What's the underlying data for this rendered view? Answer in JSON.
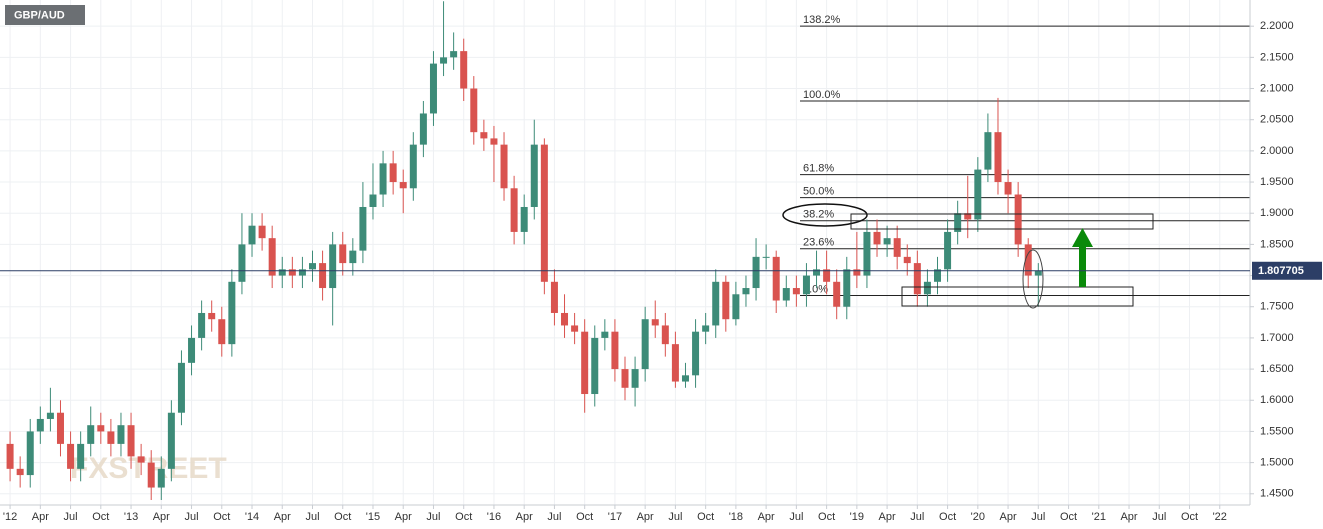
{
  "chart_data": {
    "type": "candlestick",
    "title": "GBP/AUD",
    "watermark": "FXSTREET",
    "series": [
      {
        "name": "GBP/AUD",
        "up_color": "#3d8b78",
        "down_color": "#d9534f",
        "x": [
          "2012-01",
          "2012-02",
          "2012-03",
          "2012-04",
          "2012-05",
          "2012-06",
          "2012-07",
          "2012-08",
          "2012-09",
          "2012-10",
          "2012-11",
          "2012-12",
          "2013-01",
          "2013-02",
          "2013-03",
          "2013-04",
          "2013-05",
          "2013-06",
          "2013-07",
          "2013-08",
          "2013-09",
          "2013-10",
          "2013-11",
          "2013-12",
          "2014-01",
          "2014-02",
          "2014-03",
          "2014-04",
          "2014-05",
          "2014-06",
          "2014-07",
          "2014-08",
          "2014-09",
          "2014-10",
          "2014-11",
          "2014-12",
          "2015-01",
          "2015-02",
          "2015-03",
          "2015-04",
          "2015-05",
          "2015-06",
          "2015-07",
          "2015-08",
          "2015-09",
          "2015-10",
          "2015-11",
          "2015-12",
          "2016-01",
          "2016-02",
          "2016-03",
          "2016-04",
          "2016-05",
          "2016-06",
          "2016-07",
          "2016-08",
          "2016-09",
          "2016-10",
          "2016-11",
          "2016-12",
          "2017-01",
          "2017-02",
          "2017-03",
          "2017-04",
          "2017-05",
          "2017-06",
          "2017-07",
          "2017-08",
          "2017-09",
          "2017-10",
          "2017-11",
          "2017-12",
          "2018-01",
          "2018-02",
          "2018-03",
          "2018-04",
          "2018-05",
          "2018-06",
          "2018-07",
          "2018-08",
          "2018-09",
          "2018-10",
          "2018-11",
          "2018-12",
          "2019-01",
          "2019-02",
          "2019-03",
          "2019-04",
          "2019-05",
          "2019-06",
          "2019-07",
          "2019-08",
          "2019-09",
          "2019-10",
          "2019-11",
          "2019-12",
          "2020-01",
          "2020-02",
          "2020-03",
          "2020-04",
          "2020-05",
          "2020-06",
          "2020-07"
        ],
        "open": [
          1.53,
          1.49,
          1.48,
          1.55,
          1.57,
          1.58,
          1.53,
          1.49,
          1.53,
          1.56,
          1.55,
          1.53,
          1.56,
          1.51,
          1.5,
          1.46,
          1.49,
          1.58,
          1.66,
          1.7,
          1.74,
          1.73,
          1.69,
          1.79,
          1.85,
          1.88,
          1.86,
          1.8,
          1.81,
          1.8,
          1.81,
          1.82,
          1.78,
          1.85,
          1.82,
          1.84,
          1.91,
          1.93,
          1.98,
          1.95,
          1.94,
          2.01,
          2.06,
          2.14,
          2.15,
          2.16,
          2.1,
          2.03,
          2.02,
          2.01,
          1.94,
          1.87,
          1.91,
          2.01,
          1.79,
          1.74,
          1.72,
          1.71,
          1.61,
          1.7,
          1.71,
          1.65,
          1.62,
          1.65,
          1.73,
          1.72,
          1.69,
          1.63,
          1.64,
          1.71,
          1.72,
          1.79,
          1.73,
          1.77,
          1.78,
          1.83,
          1.83,
          1.76,
          1.78,
          1.77,
          1.8,
          1.81,
          1.79,
          1.75,
          1.81,
          1.8,
          1.87,
          1.85,
          1.86,
          1.83,
          1.82,
          1.77,
          1.79,
          1.81,
          1.87,
          1.9,
          1.89,
          1.97,
          2.03,
          1.95,
          1.93,
          1.85,
          1.8
        ],
        "high": [
          1.55,
          1.51,
          1.57,
          1.59,
          1.62,
          1.6,
          1.55,
          1.55,
          1.59,
          1.58,
          1.57,
          1.58,
          1.58,
          1.53,
          1.52,
          1.51,
          1.6,
          1.68,
          1.72,
          1.76,
          1.76,
          1.75,
          1.81,
          1.9,
          1.9,
          1.9,
          1.88,
          1.83,
          1.83,
          1.83,
          1.84,
          1.84,
          1.87,
          1.87,
          1.86,
          1.95,
          1.98,
          2.0,
          2.0,
          1.97,
          2.03,
          2.08,
          2.16,
          2.24,
          2.19,
          2.18,
          2.12,
          2.05,
          2.04,
          2.03,
          1.96,
          1.93,
          2.05,
          2.02,
          1.81,
          1.77,
          1.74,
          1.73,
          1.72,
          1.73,
          1.73,
          1.67,
          1.67,
          1.75,
          1.76,
          1.74,
          1.71,
          1.66,
          1.73,
          1.74,
          1.81,
          1.8,
          1.79,
          1.8,
          1.86,
          1.85,
          1.84,
          1.8,
          1.8,
          1.82,
          1.84,
          1.84,
          1.81,
          1.83,
          1.87,
          1.89,
          1.89,
          1.88,
          1.88,
          1.85,
          1.84,
          1.81,
          1.83,
          1.89,
          1.92,
          1.96,
          1.99,
          2.06,
          2.085,
          1.97,
          1.95,
          1.86,
          1.82
        ],
        "low": [
          1.47,
          1.46,
          1.46,
          1.53,
          1.55,
          1.51,
          1.47,
          1.47,
          1.51,
          1.53,
          1.51,
          1.51,
          1.49,
          1.48,
          1.44,
          1.44,
          1.47,
          1.56,
          1.64,
          1.68,
          1.71,
          1.67,
          1.67,
          1.77,
          1.83,
          1.84,
          1.78,
          1.78,
          1.78,
          1.78,
          1.79,
          1.76,
          1.72,
          1.8,
          1.8,
          1.82,
          1.89,
          1.91,
          1.93,
          1.9,
          1.92,
          1.99,
          2.04,
          2.12,
          2.13,
          2.08,
          2.01,
          2.0,
          1.95,
          1.92,
          1.85,
          1.85,
          1.89,
          1.77,
          1.72,
          1.7,
          1.69,
          1.58,
          1.59,
          1.68,
          1.63,
          1.6,
          1.59,
          1.63,
          1.7,
          1.67,
          1.62,
          1.62,
          1.62,
          1.69,
          1.7,
          1.71,
          1.72,
          1.75,
          1.76,
          1.81,
          1.74,
          1.75,
          1.75,
          1.75,
          1.78,
          1.77,
          1.73,
          1.73,
          1.78,
          1.78,
          1.83,
          1.83,
          1.81,
          1.8,
          1.75,
          1.75,
          1.77,
          1.79,
          1.85,
          1.86,
          1.87,
          1.95,
          1.93,
          1.9,
          1.83,
          1.78,
          1.75
        ],
        "close": [
          1.49,
          1.48,
          1.55,
          1.57,
          1.58,
          1.53,
          1.49,
          1.53,
          1.56,
          1.55,
          1.53,
          1.56,
          1.51,
          1.5,
          1.46,
          1.49,
          1.58,
          1.66,
          1.7,
          1.74,
          1.73,
          1.69,
          1.79,
          1.85,
          1.88,
          1.86,
          1.8,
          1.81,
          1.8,
          1.81,
          1.82,
          1.78,
          1.85,
          1.82,
          1.84,
          1.91,
          1.93,
          1.98,
          1.95,
          1.94,
          2.01,
          2.06,
          2.14,
          2.15,
          2.16,
          2.1,
          2.03,
          2.02,
          2.01,
          1.94,
          1.87,
          1.91,
          2.01,
          1.79,
          1.74,
          1.72,
          1.71,
          1.61,
          1.7,
          1.71,
          1.65,
          1.62,
          1.65,
          1.73,
          1.72,
          1.69,
          1.63,
          1.64,
          1.71,
          1.72,
          1.79,
          1.73,
          1.77,
          1.78,
          1.83,
          1.83,
          1.76,
          1.78,
          1.77,
          1.8,
          1.81,
          1.79,
          1.75,
          1.81,
          1.8,
          1.87,
          1.85,
          1.86,
          1.83,
          1.82,
          1.77,
          1.79,
          1.81,
          1.87,
          1.9,
          1.89,
          1.97,
          2.03,
          1.95,
          1.93,
          1.85,
          1.8,
          1.8077
        ]
      }
    ],
    "last_price": 1.807705,
    "fib_levels": [
      {
        "label": "138.2%",
        "value": 2.2
      },
      {
        "label": "100.0%",
        "value": 2.08
      },
      {
        "label": "61.8%",
        "value": 1.962
      },
      {
        "label": "50.0%",
        "value": 1.925
      },
      {
        "label": "38.2%",
        "value": 1.888
      },
      {
        "label": "23.6%",
        "value": 1.843
      },
      {
        "label": "0.0%",
        "value": 1.768
      }
    ],
    "xlim": [
      "2011-12",
      "2022-04"
    ],
    "ylim": [
      1.432,
      2.242
    ],
    "yticks": [
      {
        "value": 1.45,
        "label": "1.4500"
      },
      {
        "value": 1.5,
        "label": "1.5000"
      },
      {
        "value": 1.55,
        "label": "1.5500"
      },
      {
        "value": 1.6,
        "label": "1.6000"
      },
      {
        "value": 1.65,
        "label": "1.6500"
      },
      {
        "value": 1.7,
        "label": "1.7000"
      },
      {
        "value": 1.75,
        "label": "1.7500"
      },
      {
        "value": 1.8,
        "label": "1.8000"
      },
      {
        "value": 1.85,
        "label": "1.8500"
      },
      {
        "value": 1.9,
        "label": "1.9000"
      },
      {
        "value": 1.95,
        "label": "1.9500"
      },
      {
        "value": 2.0,
        "label": "2.0000"
      },
      {
        "value": 2.05,
        "label": "2.0500"
      },
      {
        "value": 2.1,
        "label": "2.1000"
      },
      {
        "value": 2.15,
        "label": "2.1500"
      },
      {
        "value": 2.2,
        "label": "2.2000"
      }
    ],
    "xticks": [
      {
        "value": "2012-01",
        "label": "'12"
      },
      {
        "value": "2012-04",
        "label": "Apr"
      },
      {
        "value": "2012-07",
        "label": "Jul"
      },
      {
        "value": "2012-10",
        "label": "Oct"
      },
      {
        "value": "2013-01",
        "label": "'13"
      },
      {
        "value": "2013-04",
        "label": "Apr"
      },
      {
        "value": "2013-07",
        "label": "Jul"
      },
      {
        "value": "2013-10",
        "label": "Oct"
      },
      {
        "value": "2014-01",
        "label": "'14"
      },
      {
        "value": "2014-04",
        "label": "Apr"
      },
      {
        "value": "2014-07",
        "label": "Jul"
      },
      {
        "value": "2014-10",
        "label": "Oct"
      },
      {
        "value": "2015-01",
        "label": "'15"
      },
      {
        "value": "2015-04",
        "label": "Apr"
      },
      {
        "value": "2015-07",
        "label": "Jul"
      },
      {
        "value": "2015-10",
        "label": "Oct"
      },
      {
        "value": "2016-01",
        "label": "'16"
      },
      {
        "value": "2016-04",
        "label": "Apr"
      },
      {
        "value": "2016-07",
        "label": "Jul"
      },
      {
        "value": "2016-10",
        "label": "Oct"
      },
      {
        "value": "2017-01",
        "label": "'17"
      },
      {
        "value": "2017-04",
        "label": "Apr"
      },
      {
        "value": "2017-07",
        "label": "Jul"
      },
      {
        "value": "2017-10",
        "label": "Oct"
      },
      {
        "value": "2018-01",
        "label": "'18"
      },
      {
        "value": "2018-04",
        "label": "Apr"
      },
      {
        "value": "2018-07",
        "label": "Jul"
      },
      {
        "value": "2018-10",
        "label": "Oct"
      },
      {
        "value": "2019-01",
        "label": "'19"
      },
      {
        "value": "2019-04",
        "label": "Apr"
      },
      {
        "value": "2019-07",
        "label": "Jul"
      },
      {
        "value": "2019-10",
        "label": "Oct"
      },
      {
        "value": "2020-01",
        "label": "'20"
      },
      {
        "value": "2020-04",
        "label": "Apr"
      },
      {
        "value": "2020-07",
        "label": "Jul"
      },
      {
        "value": "2020-10",
        "label": "Oct"
      },
      {
        "value": "2021-01",
        "label": "'21"
      },
      {
        "value": "2021-04",
        "label": "Apr"
      },
      {
        "value": "2021-07",
        "label": "Jul"
      },
      {
        "value": "2021-10",
        "label": "Oct"
      },
      {
        "value": "2022-01",
        "label": "'22"
      }
    ],
    "grid": true
  }
}
